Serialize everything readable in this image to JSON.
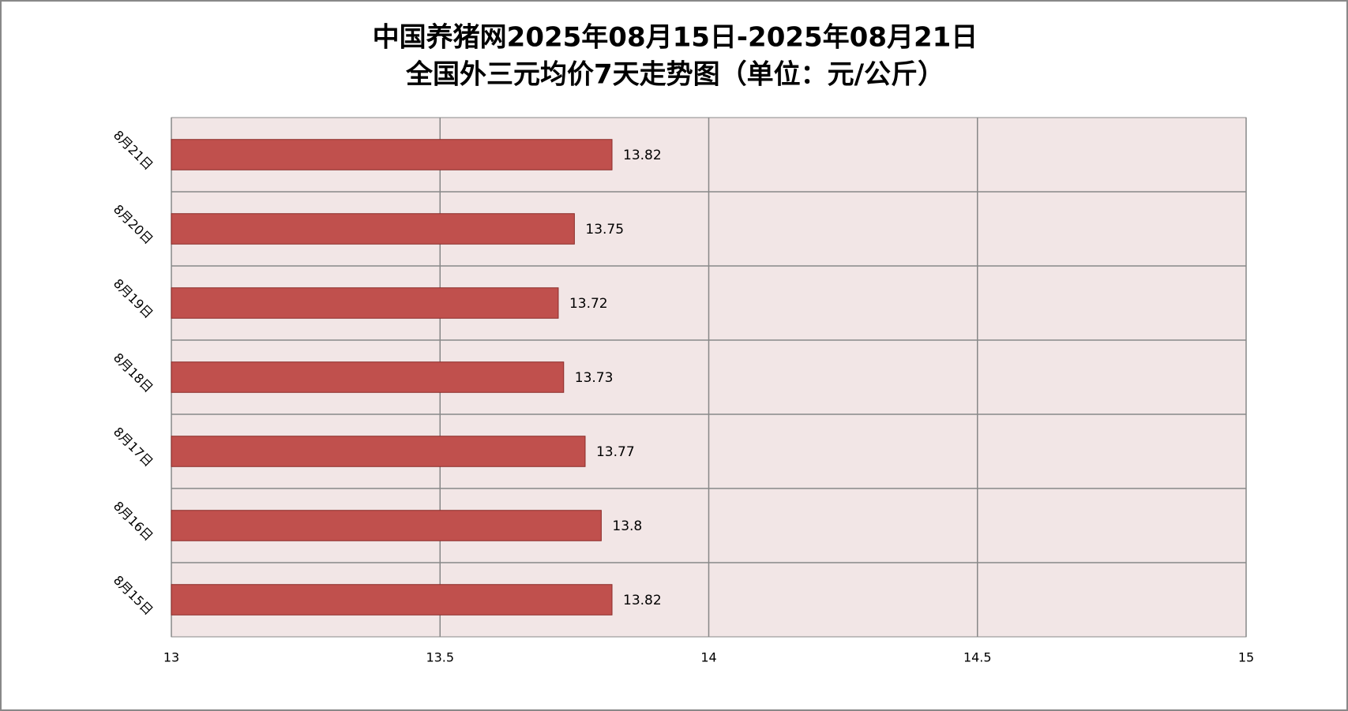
{
  "chart_data": {
    "type": "hbar",
    "title": [
      "中国养猪网2025年08月15日-2025年08月21日",
      "全国外三元均价7天走势图（单位：元/公斤）"
    ],
    "categories": [
      "8月15日",
      "8月16日",
      "8月17日",
      "8月18日",
      "8月19日",
      "8月20日",
      "8月21日"
    ],
    "values": [
      13.82,
      13.8,
      13.77,
      13.73,
      13.72,
      13.75,
      13.82
    ],
    "color": "#c0504d",
    "xlim": [
      13,
      15
    ],
    "xticks": [
      13,
      13.5,
      14,
      14.5,
      15
    ],
    "grid": true
  }
}
